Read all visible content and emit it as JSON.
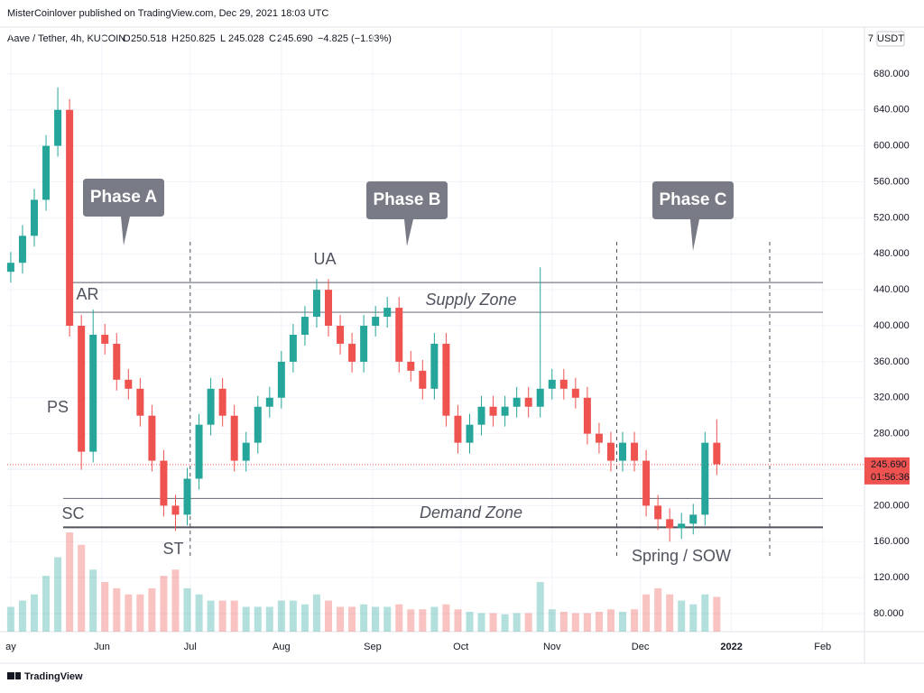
{
  "header": {
    "published": "MisterCoinlover published on TradingView.com, Dec 29, 2021 18:03 UTC",
    "symbol": "Aave / Tether, 4h, KUCOIN",
    "ohlc": [
      {
        "label": "O",
        "value": "250.518"
      },
      {
        "label": "H",
        "value": "250.825"
      },
      {
        "label": "L",
        "value": "245.028"
      },
      {
        "label": "C",
        "value": "245.690"
      }
    ],
    "change": "−4.825 (−1.93%)",
    "currency": "USDT",
    "scale_button": "7"
  },
  "chart_data": {
    "type": "candlestick",
    "x": [
      0,
      4,
      8,
      12,
      16,
      20,
      24,
      28,
      32,
      36,
      40,
      44,
      48,
      52,
      56,
      60,
      64,
      68,
      72,
      76,
      80,
      84,
      88,
      92,
      96,
      100,
      104,
      108,
      112,
      116,
      120,
      124,
      128,
      132,
      136,
      140,
      144,
      148,
      152,
      156,
      160,
      164,
      168,
      172,
      176,
      180,
      184,
      188,
      192,
      196,
      200,
      204,
      208,
      212,
      216,
      220,
      224,
      228,
      232,
      236,
      240
    ],
    "open": [
      460,
      470,
      500,
      540,
      600,
      640,
      400,
      260,
      390,
      380,
      340,
      330,
      300,
      250,
      200,
      190,
      230,
      290,
      330,
      300,
      250,
      270,
      310,
      320,
      360,
      390,
      410,
      440,
      400,
      380,
      360,
      400,
      410,
      420,
      360,
      350,
      330,
      380,
      300,
      270,
      290,
      310,
      300,
      310,
      320,
      310,
      330,
      340,
      330,
      320,
      280,
      270,
      250,
      270,
      250,
      200,
      185,
      175,
      180,
      190,
      270
    ],
    "high": [
      482,
      512,
      552,
      612,
      665,
      652,
      412,
      418,
      402,
      392,
      352,
      342,
      312,
      262,
      212,
      242,
      302,
      342,
      342,
      312,
      282,
      322,
      332,
      372,
      402,
      422,
      452,
      452,
      412,
      392,
      412,
      422,
      432,
      432,
      372,
      362,
      392,
      392,
      312,
      302,
      322,
      322,
      322,
      332,
      332,
      465,
      352,
      352,
      342,
      332,
      292,
      282,
      282,
      282,
      262,
      212,
      197,
      192,
      202,
      282,
      296
    ],
    "low": [
      448,
      458,
      488,
      528,
      588,
      388,
      240,
      248,
      368,
      328,
      318,
      288,
      238,
      188,
      172,
      178,
      218,
      278,
      288,
      238,
      238,
      258,
      298,
      308,
      348,
      378,
      398,
      388,
      368,
      348,
      348,
      388,
      398,
      348,
      338,
      318,
      318,
      288,
      258,
      258,
      278,
      288,
      288,
      298,
      298,
      298,
      318,
      318,
      308,
      268,
      258,
      238,
      238,
      238,
      188,
      173,
      160,
      163,
      168,
      178,
      234
    ],
    "close": [
      470,
      500,
      540,
      600,
      640,
      400,
      260,
      390,
      380,
      340,
      330,
      300,
      250,
      200,
      190,
      230,
      290,
      330,
      300,
      250,
      270,
      310,
      320,
      360,
      390,
      410,
      440,
      400,
      380,
      360,
      400,
      410,
      420,
      360,
      350,
      330,
      380,
      300,
      270,
      290,
      310,
      300,
      310,
      320,
      310,
      330,
      340,
      330,
      320,
      280,
      270,
      250,
      270,
      250,
      200,
      185,
      175,
      180,
      190,
      270,
      246
    ],
    "volume": [
      20,
      25,
      30,
      45,
      60,
      80,
      70,
      50,
      40,
      35,
      30,
      30,
      35,
      45,
      50,
      35,
      30,
      25,
      25,
      25,
      20,
      20,
      20,
      25,
      25,
      22,
      30,
      25,
      20,
      20,
      22,
      20,
      20,
      22,
      18,
      18,
      20,
      22,
      18,
      16,
      15,
      15,
      14,
      15,
      15,
      40,
      18,
      16,
      15,
      15,
      16,
      18,
      16,
      18,
      30,
      35,
      30,
      25,
      22,
      30,
      28
    ],
    "up_color": "#26a69a",
    "down_color": "#ef5350",
    "xlim": [
      -1.2,
      290.2
    ],
    "xticks": [
      {
        "value": 0,
        "label": "ay"
      },
      {
        "value": 31,
        "label": "Jun"
      },
      {
        "value": 61,
        "label": "Jul"
      },
      {
        "value": 92,
        "label": "Aug"
      },
      {
        "value": 123,
        "label": "Sep"
      },
      {
        "value": 153,
        "label": "Oct"
      },
      {
        "value": 184,
        "label": "Nov"
      },
      {
        "value": 214,
        "label": "Dec"
      },
      {
        "value": 245,
        "label": "2022"
      },
      {
        "value": 276,
        "label": "Feb"
      }
    ],
    "ylim": [
      60,
      732
    ],
    "yticks": [
      {
        "value": 80,
        "label": "80.000"
      },
      {
        "value": 120,
        "label": "120.000"
      },
      {
        "value": 160,
        "label": "160.000"
      },
      {
        "value": 200,
        "label": "200.000"
      },
      {
        "value": 240,
        "label": "240.000"
      },
      {
        "value": 280,
        "label": "280.000"
      },
      {
        "value": 320,
        "label": "320.000"
      },
      {
        "value": 360,
        "label": "360.000"
      },
      {
        "value": 400,
        "label": "400.000"
      },
      {
        "value": 440,
        "label": "440.000"
      },
      {
        "value": 480,
        "label": "480.000"
      },
      {
        "value": 520,
        "label": "520.000"
      },
      {
        "value": 560,
        "label": "560.000"
      },
      {
        "value": 600,
        "label": "600.000"
      },
      {
        "value": 640,
        "label": "640.000"
      },
      {
        "value": 680,
        "label": "680.000"
      }
    ],
    "grid": true,
    "last_price": {
      "value": 245.69,
      "label": "245.690"
    },
    "countdown": "01:56:36",
    "levels": [
      448,
      415,
      208,
      176
    ],
    "phase_boundaries": [
      61,
      206,
      258
    ],
    "phases": [
      "Phase A",
      "Phase B",
      "Phase C"
    ],
    "annotations": [
      "UA",
      "AR",
      "PS",
      "SC",
      "ST",
      "Spring / SOW"
    ],
    "zones": [
      "Supply Zone",
      "Demand Zone"
    ]
  },
  "footer": {
    "brand": "TradingView"
  }
}
